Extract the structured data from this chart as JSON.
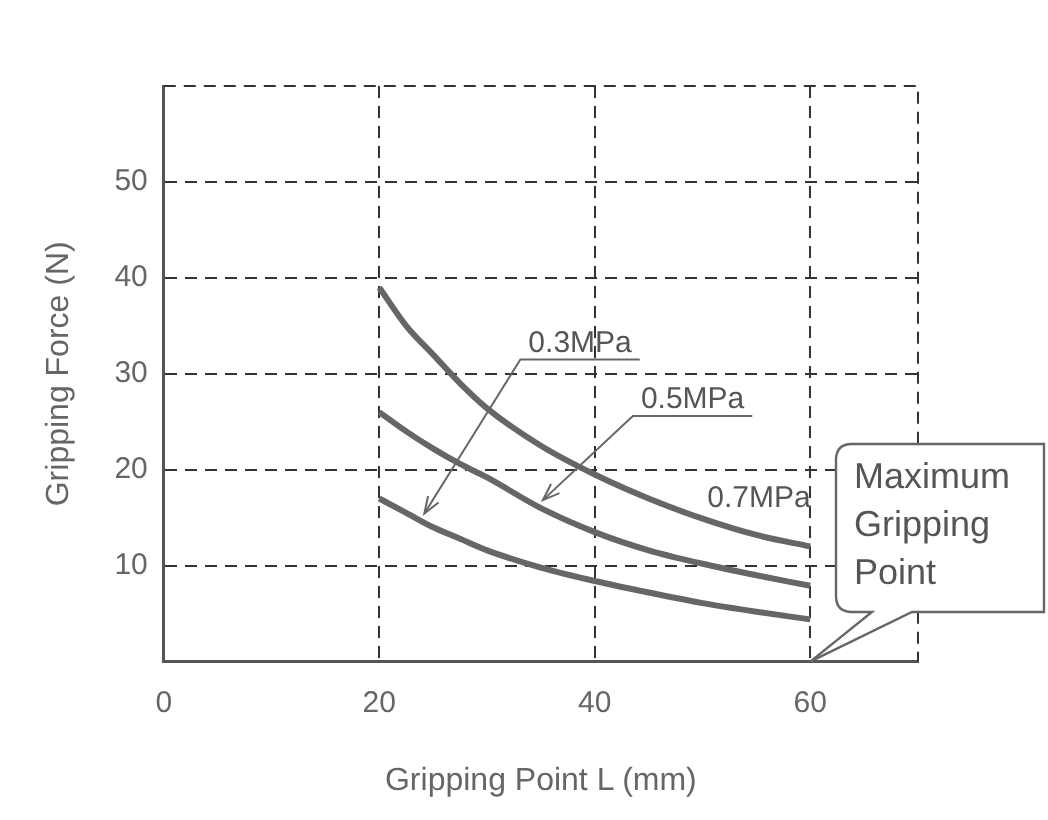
{
  "chart_data": {
    "type": "line",
    "xlabel": "Gripping Point L (mm)",
    "ylabel": "Gripping Force (N)",
    "x": [
      20,
      22.5,
      25,
      27.5,
      30,
      35,
      40,
      45,
      50,
      55,
      60
    ],
    "series": [
      {
        "name": "0.3MPa",
        "color": "#666666",
        "values": [
          17,
          15.5,
          14,
          12.8,
          11.6,
          9.8,
          8.4,
          7.2,
          6.1,
          5.2,
          4.4
        ]
      },
      {
        "name": "0.5MPa",
        "color": "#666666",
        "values": [
          26,
          24,
          22.2,
          20.6,
          19.2,
          16,
          13.5,
          11.6,
          10.2,
          9,
          7.9
        ]
      },
      {
        "name": "0.7MPa",
        "color": "#666666",
        "values": [
          39,
          35,
          32,
          29,
          26.4,
          22.5,
          19.5,
          17,
          14.9,
          13.2,
          12
        ]
      }
    ],
    "xlim": [
      0,
      70
    ],
    "ylim": [
      0,
      60
    ],
    "xticks": [
      0,
      20,
      40,
      60
    ],
    "yticks": [
      10,
      20,
      30,
      40,
      50
    ],
    "grid": true,
    "legend": false,
    "marker": "none",
    "line_style": "solid",
    "annotations": [
      "Maximum Gripping Point"
    ]
  }
}
